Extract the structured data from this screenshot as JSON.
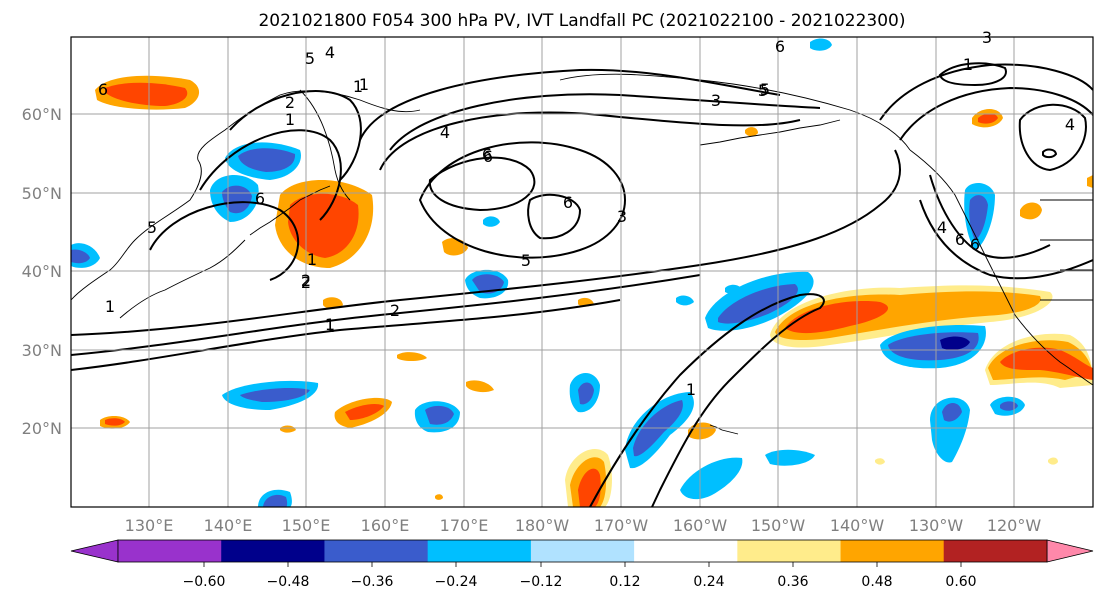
{
  "title": "2021021800 F054 300 hPa PV, IVT Landfall PC (2021022100 - 2021022300)",
  "map": {
    "lon_labels": [
      "130°E",
      "140°E",
      "150°E",
      "160°E",
      "170°E",
      "180°W",
      "170°W",
      "160°W",
      "150°W",
      "140°W",
      "130°W",
      "120°W"
    ],
    "lat_labels": [
      "60°N",
      "50°N",
      "40°N",
      "30°N",
      "20°N"
    ]
  },
  "colorbar": {
    "colors": [
      "#9932cc",
      "#00008b",
      "#3a5ccc",
      "#00bfff",
      "#b0e2ff",
      "#ffffff",
      "#ffec8b",
      "#ffa500",
      "#ff4500",
      "#b22222",
      "#ff88aa"
    ],
    "tick_labels": [
      "−0.60",
      "−0.48",
      "−0.36",
      "−0.24",
      "−0.12",
      "0.12",
      "0.24",
      "0.36",
      "0.48",
      "0.60"
    ]
  },
  "contour_labels": [
    "6",
    "5",
    "4",
    "2",
    "1",
    "1",
    "4",
    "6",
    "6",
    "3",
    "5",
    "2",
    "1",
    "2",
    "1",
    "1",
    "5",
    "3",
    "6",
    "5",
    "1",
    "3",
    "4",
    "6",
    "1",
    "4",
    "6",
    "6",
    "6",
    "1",
    "2",
    "5",
    "1"
  ]
}
